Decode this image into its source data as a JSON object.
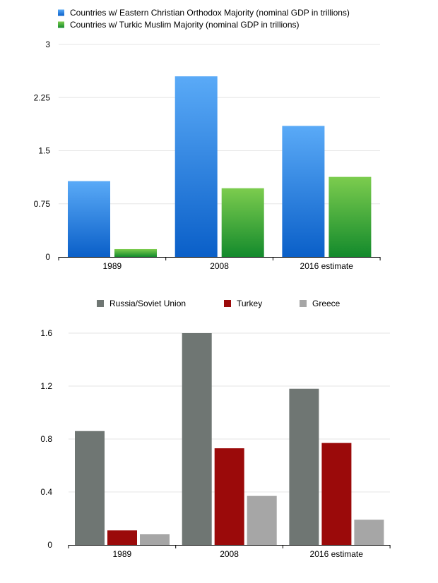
{
  "chart_data": [
    {
      "type": "bar",
      "title": "",
      "xlabel": "",
      "ylabel": "",
      "categories": [
        "1989",
        "2008",
        "2016 estimate"
      ],
      "ylim": [
        0,
        3
      ],
      "yticks": [
        0,
        0.75,
        1.5,
        2.25,
        3
      ],
      "ytick_labels": [
        "0",
        "0.75",
        "1.5",
        "2.25",
        "3"
      ],
      "grid": true,
      "legend_position": "top-left",
      "series": [
        {
          "name": "Countries w/ Eastern Christian Orthodox Majority (nominal GDP in trillions)",
          "color_top": "#5aaaf7",
          "color_bottom": "#0a5fc8",
          "color": "#2f86e6",
          "values": [
            1.07,
            2.55,
            1.85
          ]
        },
        {
          "name": "Countries w/ Turkic Muslim Majority (nominal GDP in trillions)",
          "color_top": "#7ccc4e",
          "color_bottom": "#138a2c",
          "color": "#3daa3a",
          "values": [
            0.11,
            0.97,
            1.13
          ]
        }
      ]
    },
    {
      "type": "bar",
      "title": "",
      "xlabel": "",
      "ylabel": "",
      "categories": [
        "1989",
        "2008",
        "2016 estimate"
      ],
      "ylim": [
        0,
        1.6
      ],
      "yticks": [
        0,
        0.4,
        0.8,
        1.2,
        1.6
      ],
      "ytick_labels": [
        "0",
        "0.4",
        "0.8",
        "1.2",
        "1.6"
      ],
      "grid": true,
      "legend_position": "top-center",
      "series": [
        {
          "name": "Russia/Soviet Union",
          "color": "#6f7673",
          "values": [
            0.86,
            1.6,
            1.18
          ]
        },
        {
          "name": "Turkey",
          "color": "#9b0a0a",
          "values": [
            0.11,
            0.73,
            0.77
          ]
        },
        {
          "name": "Greece",
          "color": "#a6a6a6",
          "values": [
            0.08,
            0.37,
            0.19
          ]
        }
      ]
    }
  ]
}
